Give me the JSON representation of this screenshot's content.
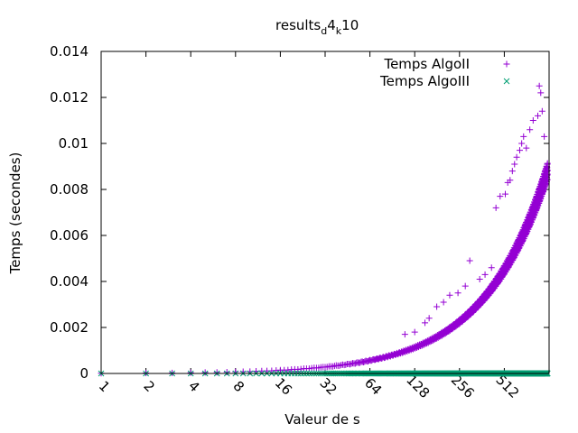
{
  "chart_data": {
    "type": "scatter",
    "title": {
      "base": "results",
      "sub1": "d",
      "mid": "4",
      "sub2": "k",
      "tail": "10"
    },
    "xlabel": "Valeur de s",
    "ylabel": "Temps (secondes)",
    "xscale": "log2",
    "xlim": [
      1,
      1024
    ],
    "ylim": [
      0,
      0.014
    ],
    "xticks": [
      "1",
      "2",
      "4",
      "8",
      "16",
      "32",
      "64",
      "128",
      "256",
      "512"
    ],
    "yticks": [
      "0",
      "0.002",
      "0.004",
      "0.006",
      "0.008",
      "0.01",
      "0.012",
      "0.014"
    ],
    "legend_position": "top-right",
    "grid": false,
    "series": [
      {
        "name": "Temps AlgoII",
        "marker": "+",
        "color": "#9400d3",
        "trend": {
          "a": 8.8e-06,
          "p": 1.0
        },
        "outliers": [
          [
            110,
            0.0017
          ],
          [
            128,
            0.0018
          ],
          [
            150,
            0.0022
          ],
          [
            160,
            0.0024
          ],
          [
            180,
            0.0029
          ],
          [
            200,
            0.0031
          ],
          [
            220,
            0.0034
          ],
          [
            250,
            0.0035
          ],
          [
            280,
            0.0038
          ],
          [
            300,
            0.0049
          ],
          [
            350,
            0.0041
          ],
          [
            380,
            0.0043
          ],
          [
            420,
            0.0046
          ],
          [
            450,
            0.0072
          ],
          [
            480,
            0.0077
          ],
          [
            520,
            0.0078
          ],
          [
            540,
            0.0083
          ],
          [
            560,
            0.0084
          ],
          [
            580,
            0.0088
          ],
          [
            600,
            0.0091
          ],
          [
            620,
            0.0094
          ],
          [
            650,
            0.0097
          ],
          [
            670,
            0.01
          ],
          [
            690,
            0.0103
          ],
          [
            720,
            0.0098
          ],
          [
            760,
            0.0106
          ],
          [
            800,
            0.011
          ],
          [
            860,
            0.0112
          ],
          [
            880,
            0.0125
          ],
          [
            900,
            0.0122
          ],
          [
            920,
            0.0114
          ],
          [
            950,
            0.0103
          ]
        ]
      },
      {
        "name": "Temps AlgoIII",
        "marker": "x",
        "color": "#009e73",
        "trend": {
          "a": 1e-07,
          "p": 0.5
        },
        "outliers": []
      }
    ]
  }
}
